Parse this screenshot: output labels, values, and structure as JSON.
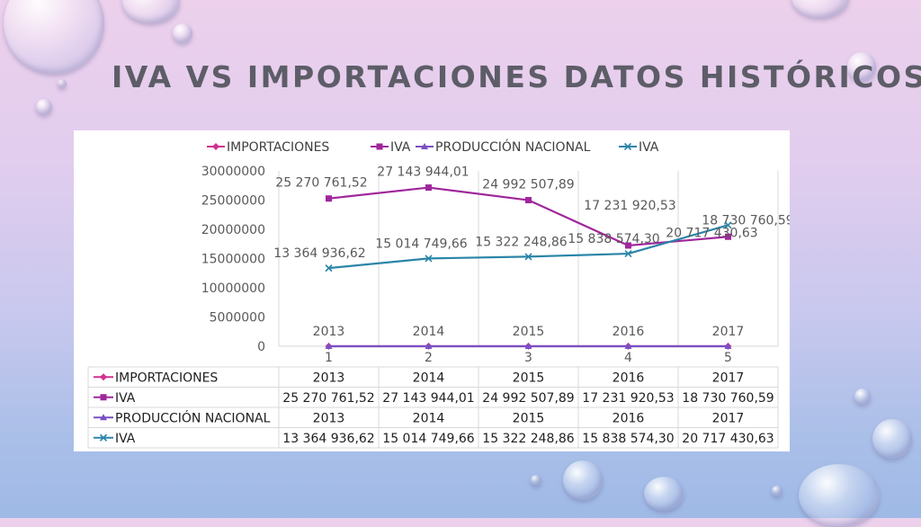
{
  "slide": {
    "title": "IVA VS IMPORTACIONES DATOS HISTÓRICOS"
  },
  "colors": {
    "importaciones": "#d0318f",
    "iva_a": "#a0269c",
    "produccion_nacional": "#7a4fc4",
    "iva_b": "#2a85a8",
    "grid": "#d9d9d9",
    "text": "#595959"
  },
  "chart_data": {
    "type": "line",
    "x": [
      1,
      2,
      3,
      4,
      5
    ],
    "x_tick_labels": [
      "1",
      "2",
      "3",
      "4",
      "5"
    ],
    "y_ticks": [
      "30000000",
      "25000000",
      "20000000",
      "15000000",
      "10000000",
      "5000000",
      "0"
    ],
    "ylim": [
      0,
      30000000
    ],
    "grid": "vertical category lines",
    "legend_position": "top",
    "series": [
      {
        "name": "IMPORTACIONES",
        "marker": "diamond",
        "values": [
          2013,
          2014,
          2015,
          2016,
          2017
        ],
        "labels": [
          "2013",
          "2014",
          "2015",
          "2016",
          "2017"
        ]
      },
      {
        "name": "IVA",
        "marker": "square",
        "values": [
          25270761.52,
          27143944.01,
          24992507.89,
          17231920.53,
          18730760.59
        ],
        "labels": [
          "25 270 761,52",
          "27 143 944,01",
          "24 992 507,89",
          "17 231 920,53",
          "18 730 760,59"
        ]
      },
      {
        "name": "PRODUCCIÓN NACIONAL",
        "marker": "triangle",
        "values": [
          2013,
          2014,
          2015,
          2016,
          2017
        ],
        "labels": [
          "2013",
          "2014",
          "2015",
          "2016",
          "2017"
        ]
      },
      {
        "name": "IVA",
        "marker": "x",
        "values": [
          13364936.62,
          15014749.66,
          15322248.86,
          15838574.3,
          20717430.63
        ],
        "labels": [
          "13 364 936,62",
          "15 014 749,66",
          "15 322 248,86",
          "15 838 574,30",
          "20 717 430,63"
        ]
      }
    ]
  }
}
